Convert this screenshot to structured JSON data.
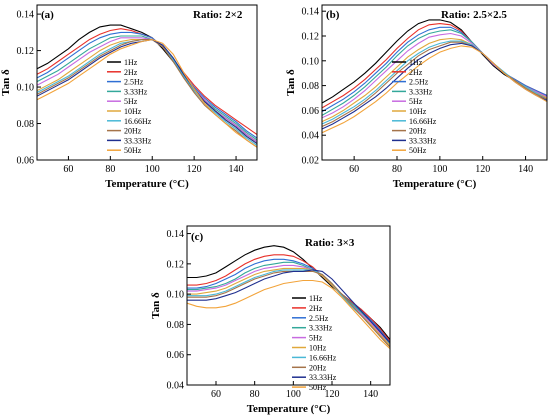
{
  "chart_data": [
    {
      "type": "line",
      "panel_label": "(a)",
      "ratio_label": "Ratio:  2×2",
      "xlabel": "Temperature (°C)",
      "ylabel": "Tan δ",
      "xlim": [
        45,
        150
      ],
      "ylim": [
        0.06,
        0.145
      ],
      "xticks": [
        60,
        80,
        100,
        120,
        140
      ],
      "yticks": [
        0.06,
        0.08,
        0.1,
        0.12,
        0.14
      ],
      "ytick_labels": [
        "0.06",
        "0.08",
        "0.10",
        "0.12",
        "0.14"
      ],
      "grid": false,
      "legend_position": "center",
      "x": [
        45,
        50,
        55,
        60,
        65,
        70,
        75,
        80,
        85,
        90,
        95,
        100,
        105,
        110,
        115,
        120,
        125,
        130,
        135,
        140,
        145,
        150
      ],
      "series": [
        {
          "name": "1Hz",
          "color": "#000000",
          "values": [
            0.11,
            0.113,
            0.117,
            0.121,
            0.126,
            0.13,
            0.133,
            0.134,
            0.134,
            0.132,
            0.13,
            0.127,
            0.121,
            0.114,
            0.106,
            0.098,
            0.092,
            0.087,
            0.083,
            0.079,
            0.074,
            0.07
          ]
        },
        {
          "name": "2Hz",
          "color": "#e8302a",
          "values": [
            0.107,
            0.11,
            0.114,
            0.118,
            0.122,
            0.126,
            0.129,
            0.131,
            0.132,
            0.131,
            0.129,
            0.127,
            0.122,
            0.115,
            0.108,
            0.101,
            0.095,
            0.09,
            0.086,
            0.082,
            0.078,
            0.074
          ]
        },
        {
          "name": "2.5Hz",
          "color": "#2f6fd4",
          "values": [
            0.105,
            0.108,
            0.112,
            0.116,
            0.12,
            0.124,
            0.127,
            0.129,
            0.13,
            0.13,
            0.129,
            0.127,
            0.122,
            0.115,
            0.107,
            0.1,
            0.094,
            0.089,
            0.085,
            0.081,
            0.076,
            0.072
          ]
        },
        {
          "name": "3.33Hz",
          "color": "#33a89a",
          "values": [
            0.103,
            0.106,
            0.109,
            0.113,
            0.117,
            0.121,
            0.124,
            0.127,
            0.128,
            0.128,
            0.128,
            0.126,
            0.122,
            0.115,
            0.107,
            0.099,
            0.093,
            0.088,
            0.084,
            0.08,
            0.075,
            0.071
          ]
        },
        {
          "name": "5Hz",
          "color": "#c76be0",
          "values": [
            0.101,
            0.104,
            0.107,
            0.111,
            0.115,
            0.119,
            0.122,
            0.125,
            0.127,
            0.127,
            0.127,
            0.126,
            0.122,
            0.115,
            0.107,
            0.099,
            0.093,
            0.087,
            0.083,
            0.079,
            0.074,
            0.07
          ]
        },
        {
          "name": "10Hz",
          "color": "#e0a83c",
          "values": [
            0.098,
            0.101,
            0.104,
            0.108,
            0.112,
            0.116,
            0.12,
            0.123,
            0.125,
            0.126,
            0.126,
            0.126,
            0.122,
            0.115,
            0.107,
            0.099,
            0.092,
            0.087,
            0.082,
            0.078,
            0.073,
            0.069
          ]
        },
        {
          "name": "16.66Hz",
          "color": "#49b8d6",
          "values": [
            0.097,
            0.1,
            0.103,
            0.106,
            0.11,
            0.114,
            0.118,
            0.121,
            0.124,
            0.125,
            0.126,
            0.126,
            0.122,
            0.115,
            0.106,
            0.098,
            0.091,
            0.086,
            0.081,
            0.077,
            0.072,
            0.068
          ]
        },
        {
          "name": "20Hz",
          "color": "#a5744a",
          "values": [
            0.096,
            0.099,
            0.102,
            0.105,
            0.109,
            0.113,
            0.117,
            0.12,
            0.123,
            0.125,
            0.126,
            0.126,
            0.122,
            0.114,
            0.105,
            0.097,
            0.09,
            0.085,
            0.08,
            0.076,
            0.071,
            0.067
          ]
        },
        {
          "name": "33.33Hz",
          "color": "#1f2f8f",
          "values": [
            0.095,
            0.098,
            0.101,
            0.104,
            0.108,
            0.112,
            0.116,
            0.119,
            0.122,
            0.124,
            0.125,
            0.126,
            0.123,
            0.116,
            0.107,
            0.099,
            0.092,
            0.087,
            0.082,
            0.078,
            0.073,
            0.069
          ]
        },
        {
          "name": "50Hz",
          "color": "#f2a33a",
          "values": [
            0.093,
            0.096,
            0.099,
            0.102,
            0.106,
            0.11,
            0.114,
            0.118,
            0.121,
            0.123,
            0.125,
            0.126,
            0.124,
            0.118,
            0.108,
            0.099,
            0.091,
            0.085,
            0.08,
            0.075,
            0.071,
            0.067
          ]
        }
      ]
    },
    {
      "type": "line",
      "panel_label": "(b)",
      "ratio_label": "Ratio:  2.5×2.5",
      "xlabel": "Temperature (°C)",
      "ylabel": "Tan δ",
      "xlim": [
        45,
        150
      ],
      "ylim": [
        0.02,
        0.145
      ],
      "xticks": [
        60,
        80,
        100,
        120,
        140
      ],
      "yticks": [
        0.02,
        0.04,
        0.06,
        0.08,
        0.1,
        0.12,
        0.14
      ],
      "ytick_labels": [
        "0.02",
        "0.04",
        "0.06",
        "0.08",
        "0.10",
        "0.12",
        "0.14"
      ],
      "grid": false,
      "legend_position": "center",
      "x": [
        45,
        50,
        55,
        60,
        65,
        70,
        75,
        80,
        85,
        90,
        95,
        100,
        105,
        110,
        115,
        120,
        125,
        130,
        135,
        140,
        145,
        150
      ],
      "series": [
        {
          "name": "1Hz",
          "color": "#000000",
          "values": [
            0.066,
            0.071,
            0.077,
            0.083,
            0.09,
            0.098,
            0.107,
            0.116,
            0.124,
            0.13,
            0.133,
            0.133,
            0.131,
            0.125,
            0.115,
            0.105,
            0.096,
            0.089,
            0.084,
            0.079,
            0.075,
            0.071
          ]
        },
        {
          "name": "2Hz",
          "color": "#e8302a",
          "values": [
            0.062,
            0.067,
            0.072,
            0.078,
            0.085,
            0.093,
            0.101,
            0.11,
            0.118,
            0.125,
            0.129,
            0.13,
            0.129,
            0.124,
            0.115,
            0.106,
            0.097,
            0.09,
            0.085,
            0.08,
            0.076,
            0.072
          ]
        },
        {
          "name": "2.5Hz",
          "color": "#2f6fd4",
          "values": [
            0.059,
            0.064,
            0.069,
            0.075,
            0.082,
            0.09,
            0.098,
            0.107,
            0.115,
            0.121,
            0.125,
            0.127,
            0.127,
            0.123,
            0.115,
            0.106,
            0.097,
            0.09,
            0.085,
            0.08,
            0.076,
            0.072
          ]
        },
        {
          "name": "3.33Hz",
          "color": "#33a89a",
          "values": [
            0.056,
            0.061,
            0.066,
            0.072,
            0.079,
            0.087,
            0.095,
            0.104,
            0.112,
            0.118,
            0.122,
            0.124,
            0.125,
            0.122,
            0.115,
            0.106,
            0.097,
            0.09,
            0.084,
            0.079,
            0.075,
            0.071
          ]
        },
        {
          "name": "5Hz",
          "color": "#c76be0",
          "values": [
            0.054,
            0.058,
            0.063,
            0.069,
            0.076,
            0.084,
            0.092,
            0.1,
            0.108,
            0.114,
            0.119,
            0.121,
            0.122,
            0.12,
            0.114,
            0.106,
            0.097,
            0.09,
            0.084,
            0.079,
            0.075,
            0.071
          ]
        },
        {
          "name": "10Hz",
          "color": "#e0a83c",
          "values": [
            0.051,
            0.055,
            0.06,
            0.066,
            0.072,
            0.079,
            0.087,
            0.095,
            0.103,
            0.109,
            0.114,
            0.117,
            0.118,
            0.117,
            0.113,
            0.106,
            0.098,
            0.09,
            0.084,
            0.079,
            0.074,
            0.07
          ]
        },
        {
          "name": "16.66Hz",
          "color": "#49b8d6",
          "values": [
            0.049,
            0.053,
            0.058,
            0.063,
            0.069,
            0.076,
            0.084,
            0.092,
            0.1,
            0.106,
            0.111,
            0.114,
            0.116,
            0.116,
            0.113,
            0.106,
            0.098,
            0.091,
            0.084,
            0.079,
            0.074,
            0.069
          ]
        },
        {
          "name": "20Hz",
          "color": "#a5744a",
          "values": [
            0.047,
            0.051,
            0.056,
            0.061,
            0.067,
            0.074,
            0.082,
            0.09,
            0.097,
            0.104,
            0.109,
            0.112,
            0.115,
            0.115,
            0.112,
            0.106,
            0.098,
            0.09,
            0.084,
            0.078,
            0.073,
            0.069
          ]
        },
        {
          "name": "33.33Hz",
          "color": "#1f2f8f",
          "values": [
            0.045,
            0.049,
            0.054,
            0.059,
            0.065,
            0.071,
            0.078,
            0.086,
            0.094,
            0.101,
            0.106,
            0.11,
            0.113,
            0.114,
            0.112,
            0.106,
            0.098,
            0.09,
            0.083,
            0.077,
            0.072,
            0.068
          ]
        },
        {
          "name": "50Hz",
          "color": "#f2a33a",
          "values": [
            0.042,
            0.046,
            0.05,
            0.055,
            0.061,
            0.067,
            0.074,
            0.082,
            0.089,
            0.096,
            0.102,
            0.107,
            0.11,
            0.112,
            0.111,
            0.106,
            0.098,
            0.09,
            0.083,
            0.077,
            0.072,
            0.067
          ]
        }
      ]
    },
    {
      "type": "line",
      "panel_label": "(c)",
      "ratio_label": "Ratio:  3×3",
      "xlabel": "Temperature (°C)",
      "ylabel": "Tan δ",
      "xlim": [
        45,
        150
      ],
      "ylim": [
        0.04,
        0.145
      ],
      "xticks": [
        60,
        80,
        100,
        120,
        140
      ],
      "yticks": [
        0.04,
        0.06,
        0.08,
        0.1,
        0.12,
        0.14
      ],
      "ytick_labels": [
        "0.04",
        "0.06",
        "0.08",
        "0.10",
        "0.12",
        "0.14"
      ],
      "grid": false,
      "legend_position": "center",
      "x": [
        45,
        50,
        55,
        60,
        65,
        70,
        75,
        80,
        85,
        90,
        95,
        100,
        105,
        110,
        115,
        120,
        125,
        130,
        135,
        140,
        145,
        150
      ],
      "series": [
        {
          "name": "1Hz",
          "color": "#000000",
          "values": [
            0.111,
            0.111,
            0.112,
            0.114,
            0.118,
            0.122,
            0.126,
            0.129,
            0.131,
            0.132,
            0.131,
            0.128,
            0.123,
            0.117,
            0.111,
            0.105,
            0.1,
            0.095,
            0.09,
            0.084,
            0.078,
            0.07
          ]
        },
        {
          "name": "2Hz",
          "color": "#e8302a",
          "values": [
            0.106,
            0.106,
            0.107,
            0.109,
            0.112,
            0.116,
            0.12,
            0.123,
            0.125,
            0.126,
            0.126,
            0.125,
            0.122,
            0.118,
            0.112,
            0.106,
            0.1,
            0.095,
            0.09,
            0.084,
            0.077,
            0.069
          ]
        },
        {
          "name": "2.5Hz",
          "color": "#2f6fd4",
          "values": [
            0.104,
            0.104,
            0.105,
            0.107,
            0.11,
            0.113,
            0.117,
            0.12,
            0.122,
            0.123,
            0.123,
            0.122,
            0.12,
            0.117,
            0.112,
            0.106,
            0.1,
            0.094,
            0.089,
            0.083,
            0.076,
            0.068
          ]
        },
        {
          "name": "3.33Hz",
          "color": "#33a89a",
          "values": [
            0.103,
            0.103,
            0.104,
            0.105,
            0.107,
            0.11,
            0.114,
            0.117,
            0.119,
            0.12,
            0.121,
            0.121,
            0.119,
            0.116,
            0.112,
            0.106,
            0.1,
            0.094,
            0.088,
            0.082,
            0.075,
            0.067
          ]
        },
        {
          "name": "5Hz",
          "color": "#c76be0",
          "values": [
            0.102,
            0.102,
            0.103,
            0.104,
            0.106,
            0.109,
            0.112,
            0.115,
            0.117,
            0.118,
            0.119,
            0.119,
            0.118,
            0.116,
            0.112,
            0.106,
            0.099,
            0.093,
            0.087,
            0.081,
            0.074,
            0.066
          ]
        },
        {
          "name": "10Hz",
          "color": "#e0a83c",
          "values": [
            0.1,
            0.1,
            0.101,
            0.102,
            0.104,
            0.107,
            0.11,
            0.113,
            0.115,
            0.116,
            0.117,
            0.117,
            0.117,
            0.116,
            0.112,
            0.106,
            0.099,
            0.092,
            0.086,
            0.08,
            0.073,
            0.066
          ]
        },
        {
          "name": "16.66Hz",
          "color": "#49b8d6",
          "values": [
            0.099,
            0.099,
            0.099,
            0.1,
            0.102,
            0.105,
            0.108,
            0.111,
            0.113,
            0.115,
            0.116,
            0.116,
            0.116,
            0.116,
            0.113,
            0.107,
            0.099,
            0.092,
            0.086,
            0.079,
            0.072,
            0.065
          ]
        },
        {
          "name": "20Hz",
          "color": "#a5744a",
          "values": [
            0.098,
            0.098,
            0.098,
            0.099,
            0.101,
            0.104,
            0.107,
            0.11,
            0.112,
            0.114,
            0.115,
            0.115,
            0.115,
            0.115,
            0.113,
            0.107,
            0.1,
            0.093,
            0.086,
            0.079,
            0.072,
            0.065
          ]
        },
        {
          "name": "33.33Hz",
          "color": "#1f2f8f",
          "values": [
            0.096,
            0.096,
            0.096,
            0.097,
            0.099,
            0.101,
            0.104,
            0.107,
            0.11,
            0.112,
            0.114,
            0.115,
            0.115,
            0.116,
            0.115,
            0.11,
            0.103,
            0.096,
            0.089,
            0.082,
            0.075,
            0.068
          ]
        },
        {
          "name": "50Hz",
          "color": "#f2a33a",
          "values": [
            0.094,
            0.092,
            0.091,
            0.091,
            0.092,
            0.094,
            0.097,
            0.1,
            0.103,
            0.105,
            0.107,
            0.108,
            0.109,
            0.109,
            0.108,
            0.104,
            0.098,
            0.091,
            0.084,
            0.077,
            0.07,
            0.064
          ]
        }
      ]
    }
  ]
}
